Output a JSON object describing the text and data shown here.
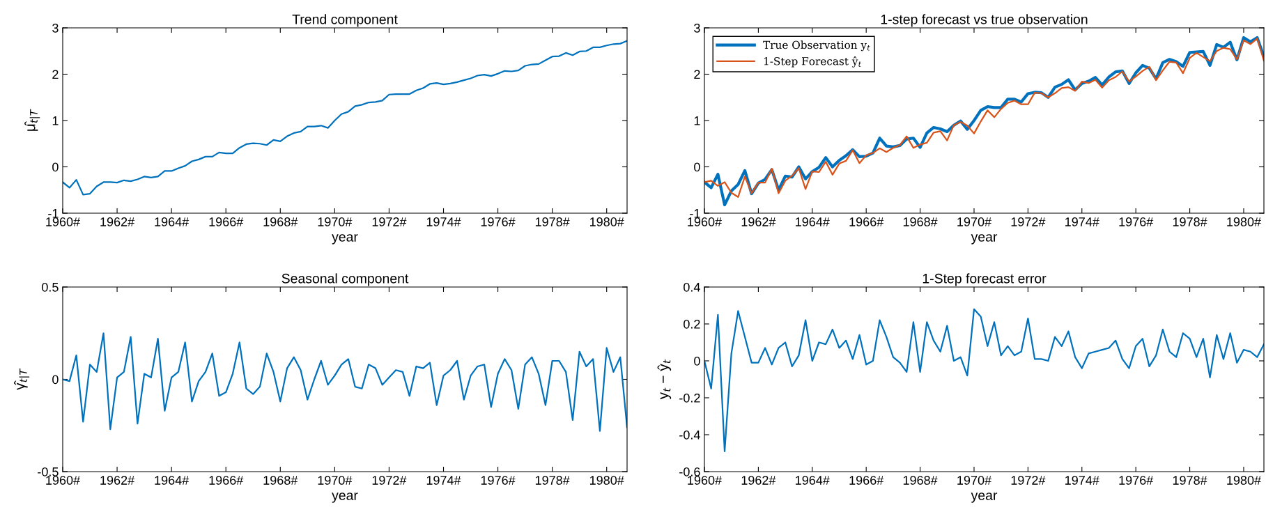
{
  "chart_data": [
    {
      "type": "line",
      "title": "Trend component",
      "xlabel": "year",
      "ylabel": "μ̂$_{t|T}$",
      "x": [
        1960,
        1960.25,
        1960.5,
        1960.75,
        1961,
        1961.25,
        1961.5,
        1961.75,
        1962,
        1962.25,
        1962.5,
        1962.75,
        1963,
        1963.25,
        1963.5,
        1963.75,
        1964,
        1964.25,
        1964.5,
        1964.75,
        1965,
        1965.25,
        1965.5,
        1965.75,
        1966,
        1966.25,
        1966.5,
        1966.75,
        1967,
        1967.25,
        1967.5,
        1967.75,
        1968,
        1968.25,
        1968.5,
        1968.75,
        1969,
        1969.25,
        1969.5,
        1969.75,
        1970,
        1970.25,
        1970.5,
        1970.75,
        1971,
        1971.25,
        1971.5,
        1971.75,
        1972,
        1972.25,
        1972.5,
        1972.75,
        1973,
        1973.25,
        1973.5,
        1973.75,
        1974,
        1974.25,
        1974.5,
        1974.75,
        1975,
        1975.25,
        1975.5,
        1975.75,
        1976,
        1976.25,
        1976.5,
        1976.75,
        1977,
        1977.25,
        1977.5,
        1977.75,
        1978,
        1978.25,
        1978.5,
        1978.75,
        1979,
        1979.25,
        1979.5,
        1979.75,
        1980,
        1980.25,
        1980.5,
        1980.75
      ],
      "series": [
        {
          "color": "#0072bd",
          "values": [
            -0.33,
            -0.45,
            -0.28,
            -0.6,
            -0.58,
            -0.42,
            -0.33,
            -0.33,
            -0.34,
            -0.29,
            -0.31,
            -0.27,
            -0.21,
            -0.23,
            -0.21,
            -0.09,
            -0.09,
            -0.03,
            0.02,
            0.12,
            0.16,
            0.22,
            0.22,
            0.31,
            0.29,
            0.29,
            0.41,
            0.49,
            0.51,
            0.5,
            0.47,
            0.58,
            0.55,
            0.66,
            0.73,
            0.76,
            0.87,
            0.87,
            0.89,
            0.84,
            1.0,
            1.14,
            1.19,
            1.31,
            1.34,
            1.39,
            1.4,
            1.43,
            1.56,
            1.57,
            1.57,
            1.57,
            1.65,
            1.7,
            1.79,
            1.81,
            1.78,
            1.8,
            1.83,
            1.87,
            1.91,
            1.97,
            1.99,
            1.96,
            2.01,
            2.07,
            2.06,
            2.08,
            2.18,
            2.21,
            2.22,
            2.3,
            2.38,
            2.39,
            2.46,
            2.41,
            2.49,
            2.5,
            2.58,
            2.58,
            2.62,
            2.65,
            2.66,
            2.72
          ]
        }
      ],
      "xlim": [
        1960,
        1980.75
      ],
      "ylim": [
        -1,
        3
      ],
      "yticks": [
        -1,
        0,
        1,
        2,
        3
      ],
      "xticks": [
        {
          "value": 1960,
          "label": "1960#"
        },
        {
          "value": 1962,
          "label": "1962#"
        },
        {
          "value": 1964,
          "label": "1964#"
        },
        {
          "value": 1966,
          "label": "1966#"
        },
        {
          "value": 1968,
          "label": "1968#"
        },
        {
          "value": 1970,
          "label": "1970#"
        },
        {
          "value": 1972,
          "label": "1972#"
        },
        {
          "value": 1974,
          "label": "1974#"
        },
        {
          "value": 1976,
          "label": "1976#"
        },
        {
          "value": 1978,
          "label": "1978#"
        },
        {
          "value": 1980,
          "label": "1980#"
        }
      ]
    },
    {
      "type": "line",
      "title": "1-step forecast vs true observation",
      "xlabel": "year",
      "legend": "top left",
      "x": [
        1960,
        1960.25,
        1960.5,
        1960.75,
        1961,
        1961.25,
        1961.5,
        1961.75,
        1962,
        1962.25,
        1962.5,
        1962.75,
        1963,
        1963.25,
        1963.5,
        1963.75,
        1964,
        1964.25,
        1964.5,
        1964.75,
        1965,
        1965.25,
        1965.5,
        1965.75,
        1966,
        1966.25,
        1966.5,
        1966.75,
        1967,
        1967.25,
        1967.5,
        1967.75,
        1968,
        1968.25,
        1968.5,
        1968.75,
        1969,
        1969.25,
        1969.5,
        1969.75,
        1970,
        1970.25,
        1970.5,
        1970.75,
        1971,
        1971.25,
        1971.5,
        1971.75,
        1972,
        1972.25,
        1972.5,
        1972.75,
        1973,
        1973.25,
        1973.5,
        1973.75,
        1974,
        1974.25,
        1974.5,
        1974.75,
        1975,
        1975.25,
        1975.5,
        1975.75,
        1976,
        1976.25,
        1976.5,
        1976.75,
        1977,
        1977.25,
        1977.5,
        1977.75,
        1978,
        1978.25,
        1978.5,
        1978.75,
        1979,
        1979.25,
        1979.5,
        1979.75,
        1980,
        1980.25,
        1980.5,
        1980.75
      ],
      "series": [
        {
          "name": "True Observation y$_{t}$",
          "color": "#0072bd",
          "values": [
            -0.33,
            -0.45,
            -0.16,
            -0.82,
            -0.52,
            -0.38,
            -0.08,
            -0.58,
            -0.35,
            -0.27,
            -0.06,
            -0.5,
            -0.2,
            -0.22,
            0.0,
            -0.26,
            -0.1,
            -0.01,
            0.2,
            0.0,
            0.14,
            0.24,
            0.37,
            0.22,
            0.23,
            0.3,
            0.62,
            0.45,
            0.43,
            0.46,
            0.6,
            0.62,
            0.42,
            0.73,
            0.85,
            0.82,
            0.76,
            0.9,
            0.99,
            0.81,
            1.0,
            1.22,
            1.3,
            1.28,
            1.28,
            1.46,
            1.46,
            1.4,
            1.58,
            1.61,
            1.6,
            1.5,
            1.72,
            1.78,
            1.88,
            1.66,
            1.8,
            1.85,
            1.93,
            1.77,
            1.94,
            2.05,
            2.07,
            1.8,
            2.03,
            2.19,
            2.13,
            1.9,
            2.25,
            2.32,
            2.27,
            2.17,
            2.47,
            2.48,
            2.49,
            2.19,
            2.64,
            2.58,
            2.69,
            2.31,
            2.79,
            2.7,
            2.79,
            2.38
          ]
        },
        {
          "name": "1-Step Forecast ŷ$_{t}$",
          "color": "#d95319",
          "values": [
            -0.33,
            -0.3,
            -0.41,
            -0.33,
            -0.56,
            -0.65,
            -0.21,
            -0.57,
            -0.34,
            -0.34,
            -0.04,
            -0.57,
            -0.3,
            -0.19,
            -0.03,
            -0.48,
            -0.1,
            -0.11,
            0.11,
            -0.17,
            0.07,
            0.13,
            0.36,
            0.08,
            0.25,
            0.3,
            0.4,
            0.32,
            0.41,
            0.47,
            0.66,
            0.41,
            0.48,
            0.52,
            0.74,
            0.77,
            0.57,
            0.9,
            0.97,
            0.89,
            0.72,
            0.98,
            1.22,
            1.07,
            1.25,
            1.38,
            1.43,
            1.35,
            1.35,
            1.6,
            1.59,
            1.5,
            1.59,
            1.7,
            1.72,
            1.64,
            1.84,
            1.81,
            1.88,
            1.71,
            1.87,
            1.94,
            2.06,
            1.84,
            1.95,
            2.07,
            2.16,
            1.87,
            2.08,
            2.27,
            2.25,
            2.02,
            2.35,
            2.46,
            2.37,
            2.28,
            2.5,
            2.57,
            2.54,
            2.32,
            2.73,
            2.65,
            2.77,
            2.29
          ]
        }
      ],
      "xlim": [
        1960,
        1980.75
      ],
      "ylim": [
        -1,
        3
      ],
      "yticks": [
        -1,
        0,
        1,
        2,
        3
      ],
      "xticks": [
        {
          "value": 1960,
          "label": "1960#"
        },
        {
          "value": 1962,
          "label": "1962#"
        },
        {
          "value": 1964,
          "label": "1964#"
        },
        {
          "value": 1966,
          "label": "1966#"
        },
        {
          "value": 1968,
          "label": "1968#"
        },
        {
          "value": 1970,
          "label": "1970#"
        },
        {
          "value": 1972,
          "label": "1972#"
        },
        {
          "value": 1974,
          "label": "1974#"
        },
        {
          "value": 1976,
          "label": "1976#"
        },
        {
          "value": 1978,
          "label": "1978#"
        },
        {
          "value": 1980,
          "label": "1980#"
        }
      ]
    },
    {
      "type": "line",
      "title": "Seasonal component",
      "xlabel": "year",
      "ylabel": "γ̂$_{t|T}$",
      "x": [
        1960,
        1960.25,
        1960.5,
        1960.75,
        1961,
        1961.25,
        1961.5,
        1961.75,
        1962,
        1962.25,
        1962.5,
        1962.75,
        1963,
        1963.25,
        1963.5,
        1963.75,
        1964,
        1964.25,
        1964.5,
        1964.75,
        1965,
        1965.25,
        1965.5,
        1965.75,
        1966,
        1966.25,
        1966.5,
        1966.75,
        1967,
        1967.25,
        1967.5,
        1967.75,
        1968,
        1968.25,
        1968.5,
        1968.75,
        1969,
        1969.25,
        1969.5,
        1969.75,
        1970,
        1970.25,
        1970.5,
        1970.75,
        1971,
        1971.25,
        1971.5,
        1971.75,
        1972,
        1972.25,
        1972.5,
        1972.75,
        1973,
        1973.25,
        1973.5,
        1973.75,
        1974,
        1974.25,
        1974.5,
        1974.75,
        1975,
        1975.25,
        1975.5,
        1975.75,
        1976,
        1976.25,
        1976.5,
        1976.75,
        1977,
        1977.25,
        1977.5,
        1977.75,
        1978,
        1978.25,
        1978.5,
        1978.75,
        1979,
        1979.25,
        1979.5,
        1979.75,
        1980,
        1980.25,
        1980.5,
        1980.75
      ],
      "series": [
        {
          "color": "#0072bd",
          "values": [
            0.0,
            -0.01,
            0.13,
            -0.23,
            0.08,
            0.04,
            0.25,
            -0.27,
            0.01,
            0.04,
            0.23,
            -0.24,
            0.03,
            0.01,
            0.22,
            -0.17,
            0.01,
            0.04,
            0.2,
            -0.12,
            -0.01,
            0.04,
            0.14,
            -0.09,
            -0.07,
            0.03,
            0.2,
            -0.05,
            -0.08,
            -0.04,
            0.14,
            0.04,
            -0.12,
            0.06,
            0.12,
            0.05,
            -0.11,
            0.0,
            0.1,
            -0.03,
            0.02,
            0.08,
            0.11,
            -0.04,
            -0.05,
            0.08,
            0.06,
            -0.03,
            0.01,
            0.05,
            0.04,
            -0.09,
            0.07,
            0.06,
            0.09,
            -0.14,
            0.02,
            0.05,
            0.1,
            -0.11,
            0.02,
            0.07,
            0.08,
            -0.15,
            0.03,
            0.11,
            0.05,
            -0.16,
            0.08,
            0.12,
            0.03,
            -0.14,
            0.1,
            0.1,
            0.04,
            -0.22,
            0.15,
            0.07,
            0.11,
            -0.28,
            0.17,
            0.04,
            0.12,
            -0.26
          ]
        }
      ],
      "xlim": [
        1960,
        1980.75
      ],
      "ylim": [
        -0.5,
        0.5
      ],
      "yticks": [
        -0.5,
        0,
        0.5
      ],
      "xticks": [
        {
          "value": 1960,
          "label": "1960#"
        },
        {
          "value": 1962,
          "label": "1962#"
        },
        {
          "value": 1964,
          "label": "1964#"
        },
        {
          "value": 1966,
          "label": "1966#"
        },
        {
          "value": 1968,
          "label": "1968#"
        },
        {
          "value": 1970,
          "label": "1970#"
        },
        {
          "value": 1972,
          "label": "1972#"
        },
        {
          "value": 1974,
          "label": "1974#"
        },
        {
          "value": 1976,
          "label": "1976#"
        },
        {
          "value": 1978,
          "label": "1978#"
        },
        {
          "value": 1980,
          "label": "1980#"
        }
      ]
    },
    {
      "type": "line",
      "title": "1-Step forecast error",
      "xlabel": "year",
      "ylabel": "y$_{t}$ − ŷ$_{t}$",
      "x": [
        1960,
        1960.25,
        1960.5,
        1960.75,
        1961,
        1961.25,
        1961.5,
        1961.75,
        1962,
        1962.25,
        1962.5,
        1962.75,
        1963,
        1963.25,
        1963.5,
        1963.75,
        1964,
        1964.25,
        1964.5,
        1964.75,
        1965,
        1965.25,
        1965.5,
        1965.75,
        1966,
        1966.25,
        1966.5,
        1966.75,
        1967,
        1967.25,
        1967.5,
        1967.75,
        1968,
        1968.25,
        1968.5,
        1968.75,
        1969,
        1969.25,
        1969.5,
        1969.75,
        1970,
        1970.25,
        1970.5,
        1970.75,
        1971,
        1971.25,
        1971.5,
        1971.75,
        1972,
        1972.25,
        1972.5,
        1972.75,
        1973,
        1973.25,
        1973.5,
        1973.75,
        1974,
        1974.25,
        1974.5,
        1974.75,
        1975,
        1975.25,
        1975.5,
        1975.75,
        1976,
        1976.25,
        1976.5,
        1976.75,
        1977,
        1977.25,
        1977.5,
        1977.75,
        1978,
        1978.25,
        1978.5,
        1978.75,
        1979,
        1979.25,
        1979.5,
        1979.75,
        1980,
        1980.25,
        1980.5,
        1980.75
      ],
      "series": [
        {
          "color": "#0072bd",
          "values": [
            0.0,
            -0.15,
            0.25,
            -0.49,
            0.04,
            0.27,
            0.13,
            -0.01,
            -0.01,
            0.07,
            -0.02,
            0.07,
            0.1,
            -0.03,
            0.03,
            0.22,
            0.0,
            0.1,
            0.09,
            0.17,
            0.07,
            0.11,
            0.01,
            0.14,
            -0.02,
            0.0,
            0.22,
            0.13,
            0.02,
            -0.01,
            -0.06,
            0.21,
            -0.06,
            0.21,
            0.11,
            0.05,
            0.19,
            0.0,
            0.02,
            -0.08,
            0.28,
            0.24,
            0.08,
            0.21,
            0.03,
            0.08,
            0.03,
            0.05,
            0.23,
            0.01,
            0.01,
            0.0,
            0.13,
            0.08,
            0.16,
            0.02,
            -0.04,
            0.04,
            0.05,
            0.06,
            0.07,
            0.11,
            0.01,
            -0.04,
            0.08,
            0.12,
            -0.03,
            0.03,
            0.17,
            0.05,
            0.02,
            0.15,
            0.12,
            0.02,
            0.12,
            -0.09,
            0.14,
            0.01,
            0.15,
            -0.01,
            0.06,
            0.05,
            0.02,
            0.09
          ]
        }
      ],
      "xlim": [
        1960,
        1980.75
      ],
      "ylim": [
        -0.6,
        0.4
      ],
      "yticks": [
        -0.6,
        -0.4,
        -0.2,
        0,
        0.2,
        0.4
      ],
      "xticks": [
        {
          "value": 1960,
          "label": "1960#"
        },
        {
          "value": 1962,
          "label": "1962#"
        },
        {
          "value": 1964,
          "label": "1964#"
        },
        {
          "value": 1966,
          "label": "1966#"
        },
        {
          "value": 1968,
          "label": "1968#"
        },
        {
          "value": 1970,
          "label": "1970#"
        },
        {
          "value": 1972,
          "label": "1972#"
        },
        {
          "value": 1974,
          "label": "1974#"
        },
        {
          "value": 1976,
          "label": "1976#"
        },
        {
          "value": 1978,
          "label": "1978#"
        },
        {
          "value": 1980,
          "label": "1980#"
        }
      ]
    }
  ]
}
